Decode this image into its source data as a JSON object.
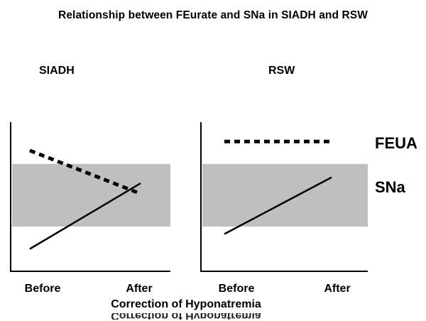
{
  "chart_data": {
    "type": "line",
    "title": "Relationship between FEurate and SNa in SIADH and RSW",
    "xlabel": "Correction of Hyponatremia",
    "categories": [
      "Before",
      "After"
    ],
    "legend_labels": {
      "feua": "FEUA",
      "sna": "SNa"
    },
    "ylim": [
      0,
      100
    ],
    "normal_band": {
      "label": "SNa",
      "low": 30,
      "high": 72,
      "color": "#bfbfbf"
    },
    "panels": [
      {
        "title": "SIADH",
        "series": [
          {
            "name": "FEUA",
            "style": "dashed",
            "values": [
              81,
              52
            ]
          },
          {
            "name": "SNa",
            "style": "solid",
            "values": [
              15,
              59
            ]
          }
        ]
      },
      {
        "title": "RSW",
        "series": [
          {
            "name": "FEUA",
            "style": "dashed",
            "values": [
              87,
              87
            ]
          },
          {
            "name": "SNa",
            "style": "solid",
            "values": [
              25,
              63
            ]
          }
        ]
      }
    ]
  }
}
